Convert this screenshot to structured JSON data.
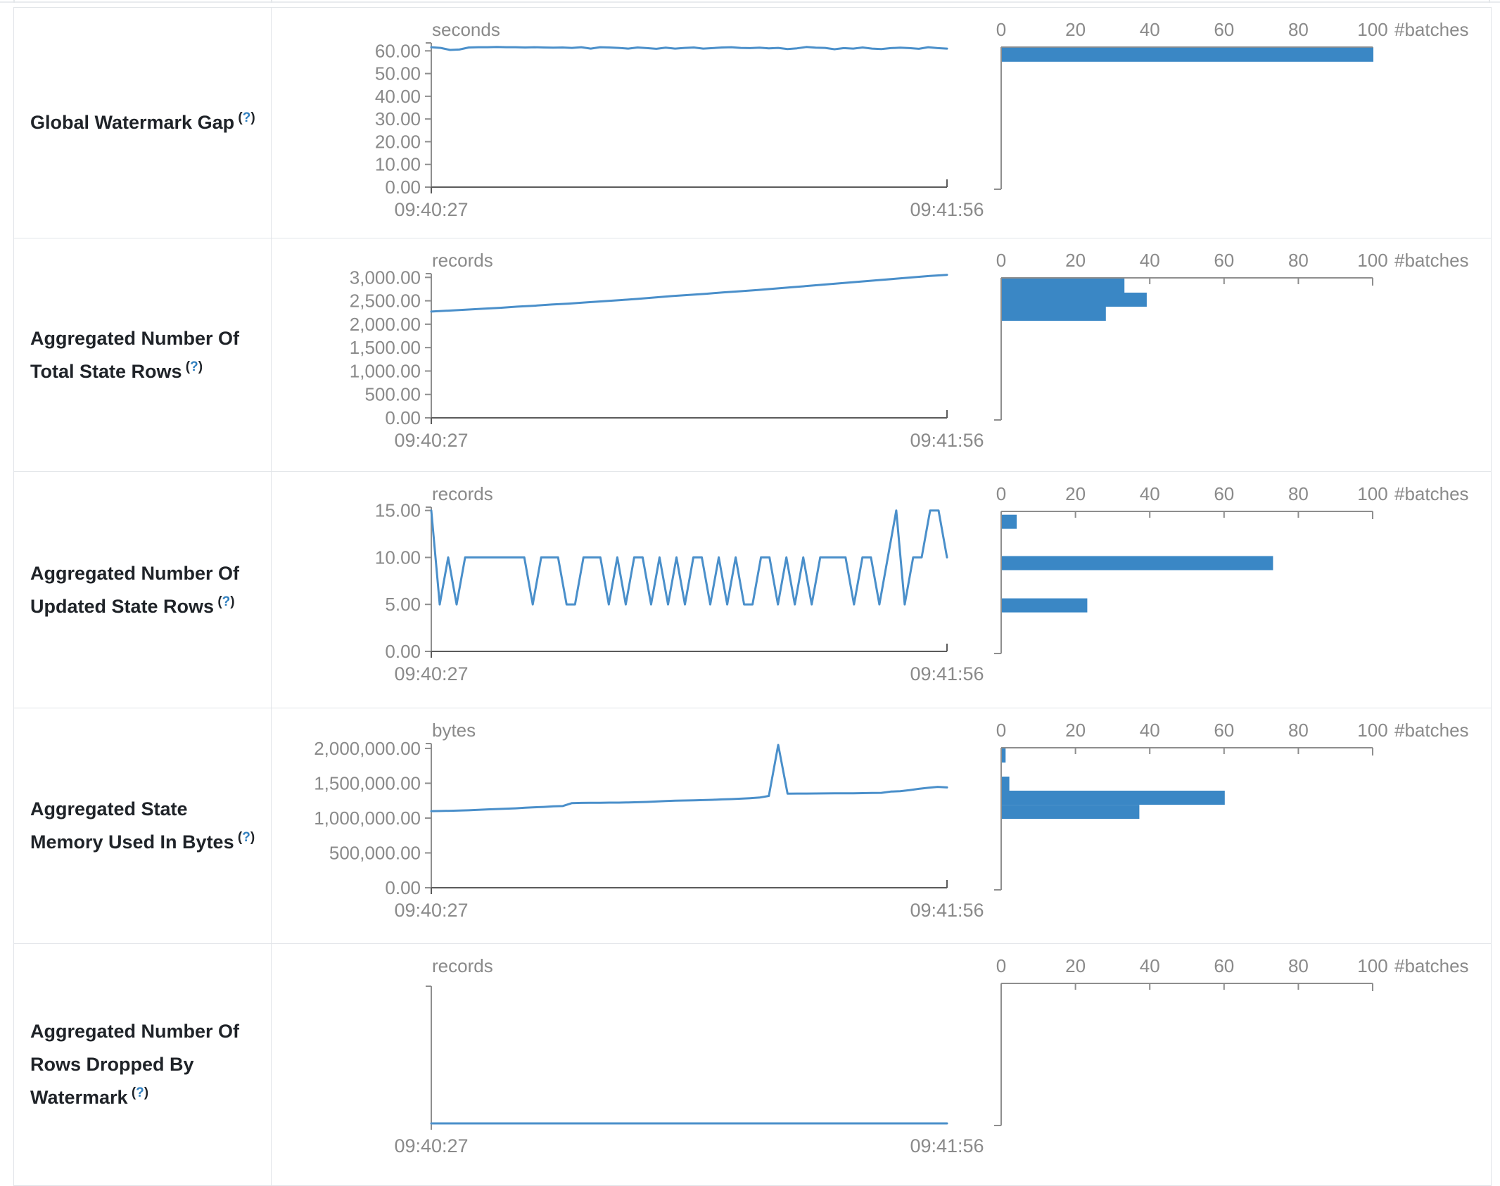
{
  "colors": {
    "bar_blue": "#3a87c5",
    "line_blue": "#4a8fca",
    "axis_gray": "#8e8e8e",
    "baseline_dark": "#5b5b5b",
    "tick_label_gray": "#8a8a8a",
    "help_blue": "#2f7fbf",
    "border_gray": "#e1e4e8",
    "label_text": "#1f2328"
  },
  "rows": [
    {
      "label": "Global Watermark Gap",
      "help": "(?)",
      "chart_data": {
        "type": "line",
        "unit": "seconds",
        "x_tick_labels": [
          "09:40:27",
          "09:41:56"
        ],
        "y_tick_labels": [
          "60.00",
          "50.00",
          "40.00",
          "30.00",
          "20.00",
          "10.00",
          "0.00"
        ],
        "y_tick_values": [
          60,
          50,
          40,
          30,
          20,
          10,
          0
        ],
        "y_axis_max": 63.5,
        "values": [
          61.6,
          61.3,
          60.4,
          60.6,
          61.5,
          61.6,
          61.6,
          61.7,
          61.6,
          61.6,
          61.5,
          61.6,
          61.5,
          61.4,
          61.5,
          61.3,
          61.6,
          61.0,
          61.6,
          61.5,
          61.3,
          61.0,
          61.5,
          61.2,
          60.9,
          61.4,
          61.0,
          61.3,
          61.5,
          61.0,
          61.2,
          61.5,
          61.6,
          61.3,
          61.2,
          61.4,
          61.1,
          61.3,
          60.8,
          61.1,
          61.7,
          61.4,
          61.3,
          60.7,
          61.2,
          61.0,
          61.5,
          61.0,
          60.8,
          61.2,
          61.4,
          61.2,
          60.9,
          61.6,
          61.2,
          61.0
        ],
        "histogram": {
          "type": "bar",
          "axis_label": "#batches",
          "tick_labels": [
            "0",
            "20",
            "40",
            "60",
            "80",
            "100"
          ],
          "tick_values": [
            0,
            20,
            40,
            60,
            80,
            100
          ],
          "axis_max": 100,
          "bars": [
            {
              "level": 58.3,
              "count": 100
            }
          ]
        }
      }
    },
    {
      "label": "Aggregated Number Of Total State Rows",
      "help": "(?)",
      "chart_data": {
        "type": "line",
        "unit": "records",
        "x_tick_labels": [
          "09:40:27",
          "09:41:56"
        ],
        "y_tick_labels": [
          "3,000.00",
          "2,500.00",
          "2,000.00",
          "1,500.00",
          "1,000.00",
          "500.00",
          "0.00"
        ],
        "y_tick_values": [
          3000,
          2500,
          2000,
          1500,
          1000,
          500,
          0
        ],
        "y_axis_max": 3080,
        "values": [
          2270,
          2290,
          2310,
          2330,
          2350,
          2375,
          2395,
          2420,
          2440,
          2465,
          2490,
          2515,
          2540,
          2570,
          2600,
          2625,
          2650,
          2680,
          2705,
          2730,
          2760,
          2790,
          2820,
          2850,
          2880,
          2910,
          2940,
          2970,
          3000,
          3030,
          3055
        ],
        "histogram": {
          "type": "bar",
          "axis_label": "#batches",
          "tick_labels": [
            "0",
            "20",
            "40",
            "60",
            "80",
            "100"
          ],
          "tick_values": [
            0,
            20,
            40,
            60,
            80,
            100
          ],
          "axis_max": 100,
          "bars": [
            {
              "level": 2824,
              "count": 33
            },
            {
              "level": 2524,
              "count": 39
            },
            {
              "level": 2224,
              "count": 28
            }
          ]
        }
      }
    },
    {
      "label": "Aggregated Number Of Updated State Rows",
      "help": "(?)",
      "chart_data": {
        "type": "line",
        "unit": "records",
        "x_tick_labels": [
          "09:40:27",
          "09:41:56"
        ],
        "y_tick_labels": [
          "15.00",
          "10.00",
          "5.00",
          "0.00"
        ],
        "y_tick_values": [
          15,
          10,
          5,
          0
        ],
        "y_axis_max": 15.35,
        "values": [
          15,
          5,
          10,
          5,
          10,
          10,
          10,
          10,
          10,
          10,
          10,
          10,
          5,
          10,
          10,
          10,
          5,
          5,
          10,
          10,
          10,
          5,
          10,
          5,
          10,
          10,
          5,
          10,
          5,
          10,
          5,
          10,
          10,
          5,
          10,
          5,
          10,
          5,
          5,
          10,
          10,
          5,
          10,
          5,
          10,
          5,
          10,
          10,
          10,
          10,
          5,
          10,
          10,
          5,
          10,
          15,
          5,
          10,
          10,
          15,
          15,
          10
        ],
        "histogram": {
          "type": "bar",
          "axis_label": "#batches",
          "tick_labels": [
            "0",
            "20",
            "40",
            "60",
            "80",
            "100"
          ],
          "tick_values": [
            0,
            20,
            40,
            60,
            80,
            100
          ],
          "axis_max": 100,
          "bars": [
            {
              "level": 13.8,
              "count": 4
            },
            {
              "level": 9.4,
              "count": 73
            },
            {
              "level": 4.9,
              "count": 23
            }
          ]
        }
      }
    },
    {
      "label": "Aggregated State Memory Used In Bytes",
      "help": "(?)",
      "chart_data": {
        "type": "line",
        "unit": "bytes",
        "x_tick_labels": [
          "09:40:27",
          "09:41:56"
        ],
        "y_tick_labels": [
          "2,000,000.00",
          "1,500,000.00",
          "1,000,000.00",
          "500,000.00",
          "0.00"
        ],
        "y_tick_values": [
          2000000,
          1500000,
          1000000,
          500000,
          0
        ],
        "y_axis_max": 2070000,
        "values": [
          1100000,
          1102000,
          1105000,
          1108000,
          1112000,
          1118000,
          1125000,
          1130000,
          1135000,
          1140000,
          1148000,
          1155000,
          1160000,
          1168000,
          1172000,
          1215000,
          1218000,
          1220000,
          1220000,
          1222000,
          1222000,
          1225000,
          1228000,
          1232000,
          1238000,
          1245000,
          1250000,
          1252000,
          1255000,
          1258000,
          1262000,
          1268000,
          1272000,
          1278000,
          1285000,
          1295000,
          1318000,
          2050000,
          1350000,
          1352000,
          1352000,
          1353000,
          1354000,
          1355000,
          1355000,
          1356000,
          1358000,
          1360000,
          1362000,
          1380000,
          1385000,
          1402000,
          1420000,
          1435000,
          1448000,
          1440000
        ],
        "histogram": {
          "type": "bar",
          "axis_label": "#batches",
          "tick_labels": [
            "0",
            "20",
            "40",
            "60",
            "80",
            "100"
          ],
          "tick_values": [
            0,
            20,
            40,
            60,
            80,
            100
          ],
          "axis_max": 100,
          "bars": [
            {
              "level": 1898000,
              "count": 1
            },
            {
              "level": 1494000,
              "count": 2
            },
            {
              "level": 1292000,
              "count": 60
            },
            {
              "level": 1090000,
              "count": 37
            }
          ]
        }
      }
    },
    {
      "label": "Aggregated Number Of Rows Dropped By Watermark",
      "help": "(?)",
      "chart_data": {
        "type": "line",
        "unit": "records",
        "x_tick_labels": [
          "09:40:27",
          "09:41:56"
        ],
        "y_tick_labels": [],
        "y_tick_values": [],
        "y_axis_max": 1,
        "values": [
          0,
          0,
          0,
          0,
          0,
          0,
          0,
          0,
          0,
          0
        ],
        "histogram": {
          "type": "bar",
          "axis_label": "#batches",
          "tick_labels": [
            "0",
            "20",
            "40",
            "60",
            "80",
            "100"
          ],
          "tick_values": [
            0,
            20,
            40,
            60,
            80,
            100
          ],
          "axis_max": 100,
          "bars": []
        }
      }
    }
  ]
}
